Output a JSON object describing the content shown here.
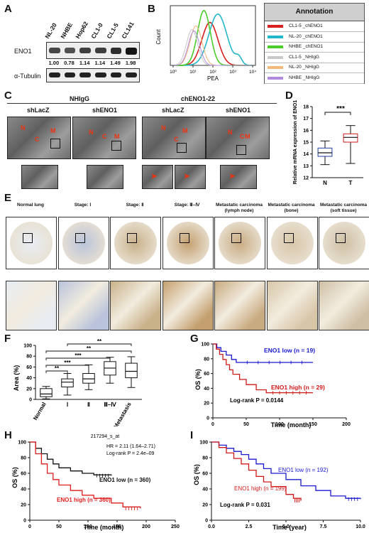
{
  "panels": {
    "a": "A",
    "b": "B",
    "c": "C",
    "d": "D",
    "e": "E",
    "f": "F",
    "g": "G",
    "h": "H",
    "i": "I"
  },
  "panel_a": {
    "lanes": [
      "NL-20",
      "NHBE",
      "Hop62",
      "CL1-0",
      "CL1-5",
      "CL141"
    ],
    "row1_label": "ENO1",
    "row2_label": "α-Tubulin",
    "values": [
      "1.00",
      "0.78",
      "1.14",
      "1.14",
      "1.49",
      "1.98"
    ]
  },
  "panel_b": {
    "ylabel": "Count",
    "xlabel": "PEA",
    "ticks": [
      "10⁰",
      "10¹",
      "10²",
      "10³",
      "10⁴"
    ],
    "annotation_title": "Annotation",
    "legend": [
      {
        "label": "CL1-5 _chENO1",
        "color": "#d81e1e"
      },
      {
        "label": "NL-20 _chENO1",
        "color": "#22b7c9"
      },
      {
        "label": "NHBE _chENO1",
        "color": "#4ccc2a"
      },
      {
        "label": "CL1-5 _NHIgG",
        "color": "#c8c8c8"
      },
      {
        "label": "NL-20 _NHIgG",
        "color": "#f0b87a"
      },
      {
        "label": "NHBE _NHIgG",
        "color": "#b08adf"
      }
    ]
  },
  "panel_c": {
    "group1": "NHIgG",
    "group2": "chENO1-22",
    "sublabels": [
      "shLacZ",
      "shENO1",
      "shLacZ",
      "shENO1"
    ],
    "marks": [
      "N",
      "C",
      "M"
    ]
  },
  "panel_d": {
    "ylabel": "Relative mRNA expression of ENO1",
    "significance": "***",
    "chart_data": {
      "type": "box",
      "categories": [
        "N",
        "T"
      ],
      "boxes": [
        {
          "min": 13.1,
          "q1": 13.8,
          "median": 14.1,
          "q3": 14.5,
          "max": 15.1
        },
        {
          "min": 13.2,
          "q1": 15.0,
          "median": 15.4,
          "q3": 15.7,
          "max": 16.4
        }
      ],
      "ylim": [
        12,
        18
      ],
      "yticks": [
        "12",
        "13",
        "14",
        "15",
        "16",
        "17",
        "18"
      ]
    }
  },
  "panel_e": {
    "labels": [
      "Normal lung",
      "Stage: Ⅰ",
      "Stage: Ⅱ",
      "Stage: Ⅲ–Ⅳ",
      "Metastatic carcinoma (lymph node)",
      "Metastatic carcinoma (bone)",
      "Metastatic carcinoma (soft tissue)"
    ]
  },
  "panel_f": {
    "ylabel": "Area (%)",
    "sig": [
      "**",
      "***",
      "***",
      "**",
      "**"
    ],
    "chart_data": {
      "type": "box",
      "categories": [
        "Normal",
        "Ⅰ",
        "Ⅱ",
        "Ⅲ–Ⅳ",
        "Metastasis"
      ],
      "boxes": [
        {
          "min": 1,
          "q1": 5,
          "median": 10,
          "q3": 20,
          "max": 24
        },
        {
          "min": 8,
          "q1": 23,
          "median": 32,
          "q3": 38,
          "max": 48
        },
        {
          "min": 18,
          "q1": 30,
          "median": 38,
          "q3": 48,
          "max": 64
        },
        {
          "min": 30,
          "q1": 45,
          "median": 58,
          "q3": 70,
          "max": 78
        },
        {
          "min": 22,
          "q1": 40,
          "median": 52,
          "q3": 67,
          "max": 79
        }
      ],
      "ylim": [
        0,
        100
      ],
      "yticks": [
        "0",
        "20",
        "40",
        "60",
        "80",
        "100"
      ]
    }
  },
  "panel_g": {
    "ylabel": "OS (%)",
    "xlabel": "Time (month)",
    "low_label": "ENO1 low (n = 19)",
    "high_label": "ENO1 high (n = 29)",
    "logrank": "Log-rank P = 0.0144",
    "chart_data": {
      "type": "line",
      "xlim": [
        0,
        200
      ],
      "ylim": [
        0,
        100
      ],
      "xticks": [
        "0",
        "50",
        "100",
        "150",
        "200"
      ],
      "yticks": [
        "0",
        "20",
        "40",
        "60",
        "80",
        "100"
      ],
      "series": [
        {
          "name": "ENO1 low (n = 19)",
          "color": "#1a1ad0",
          "points": [
            [
              0,
              100
            ],
            [
              6,
              95
            ],
            [
              12,
              90
            ],
            [
              20,
              85
            ],
            [
              28,
              79
            ],
            [
              35,
              75
            ],
            [
              150,
              75
            ]
          ]
        },
        {
          "name": "ENO1 high (n = 29)",
          "color": "#d01a1a",
          "points": [
            [
              0,
              100
            ],
            [
              5,
              93
            ],
            [
              10,
              86
            ],
            [
              15,
              79
            ],
            [
              20,
              72
            ],
            [
              25,
              65
            ],
            [
              30,
              59
            ],
            [
              40,
              52
            ],
            [
              50,
              45
            ],
            [
              65,
              38
            ],
            [
              80,
              34
            ],
            [
              150,
              34
            ]
          ]
        }
      ]
    }
  },
  "panel_h": {
    "probe": "217294_s_at",
    "hr": "HR = 2.11 (1.64–2.71)",
    "logrank": "Log-rank P = 2.4e–09",
    "ylabel": "OS (%)",
    "xlabel": "Time (month)",
    "low_label": "ENO1 low (n = 360)",
    "high_label": "ENO1 high (n = 360)",
    "chart_data": {
      "type": "line",
      "xlim": [
        0,
        250
      ],
      "ylim": [
        0,
        100
      ],
      "xticks": [
        "0",
        "50",
        "100",
        "150",
        "200",
        "250"
      ],
      "yticks": [
        "0",
        "20",
        "40",
        "60",
        "80",
        "100"
      ],
      "series": [
        {
          "name": "ENO1 low (n = 360)",
          "color": "#111111",
          "points": [
            [
              0,
              100
            ],
            [
              10,
              92
            ],
            [
              20,
              85
            ],
            [
              30,
              78
            ],
            [
              40,
              72
            ],
            [
              50,
              67
            ],
            [
              70,
              63
            ],
            [
              90,
              60
            ],
            [
              110,
              58
            ],
            [
              140,
              57
            ]
          ]
        },
        {
          "name": "ENO1 high (n = 360)",
          "color": "#e01e1e",
          "points": [
            [
              0,
              100
            ],
            [
              10,
              85
            ],
            [
              20,
              72
            ],
            [
              30,
              60
            ],
            [
              40,
              52
            ],
            [
              50,
              45
            ],
            [
              70,
              38
            ],
            [
              90,
              32
            ],
            [
              110,
              28
            ],
            [
              140,
              22
            ],
            [
              160,
              17
            ],
            [
              190,
              15
            ]
          ]
        }
      ]
    }
  },
  "panel_i": {
    "ylabel": "OS (%)",
    "xlabel": "Time (year)",
    "low_label": "ENO1 low (n = 192)",
    "high_label": "ENO1 high (n = 199)",
    "logrank": "Log-rank P = 0.031",
    "chart_data": {
      "type": "line",
      "xlim": [
        0,
        10
      ],
      "ylim": [
        0,
        100
      ],
      "xticks": [
        "0.0",
        "2.5",
        "5.0",
        "7.5",
        "10.0"
      ],
      "yticks": [
        "0",
        "20",
        "40",
        "60",
        "80",
        "100"
      ],
      "series": [
        {
          "name": "ENO1 low (n = 192)",
          "color": "#1a1ad0",
          "points": [
            [
              0,
              100
            ],
            [
              0.5,
              96
            ],
            [
              1,
              92
            ],
            [
              1.5,
              88
            ],
            [
              2,
              84
            ],
            [
              2.5,
              78
            ],
            [
              3,
              72
            ],
            [
              3.5,
              66
            ],
            [
              4,
              60
            ],
            [
              5,
              52
            ],
            [
              6,
              44
            ],
            [
              7,
              38
            ],
            [
              8,
              31
            ],
            [
              9,
              28
            ],
            [
              10,
              27
            ]
          ]
        },
        {
          "name": "ENO1 high (n = 199)",
          "color": "#d01a1a",
          "points": [
            [
              0,
              100
            ],
            [
              0.5,
              93
            ],
            [
              1,
              86
            ],
            [
              1.5,
              79
            ],
            [
              2,
              72
            ],
            [
              2.5,
              64
            ],
            [
              3,
              56
            ],
            [
              3.5,
              49
            ],
            [
              4,
              43
            ],
            [
              5,
              33
            ],
            [
              5.5,
              28
            ],
            [
              6,
              25
            ]
          ]
        }
      ]
    }
  }
}
